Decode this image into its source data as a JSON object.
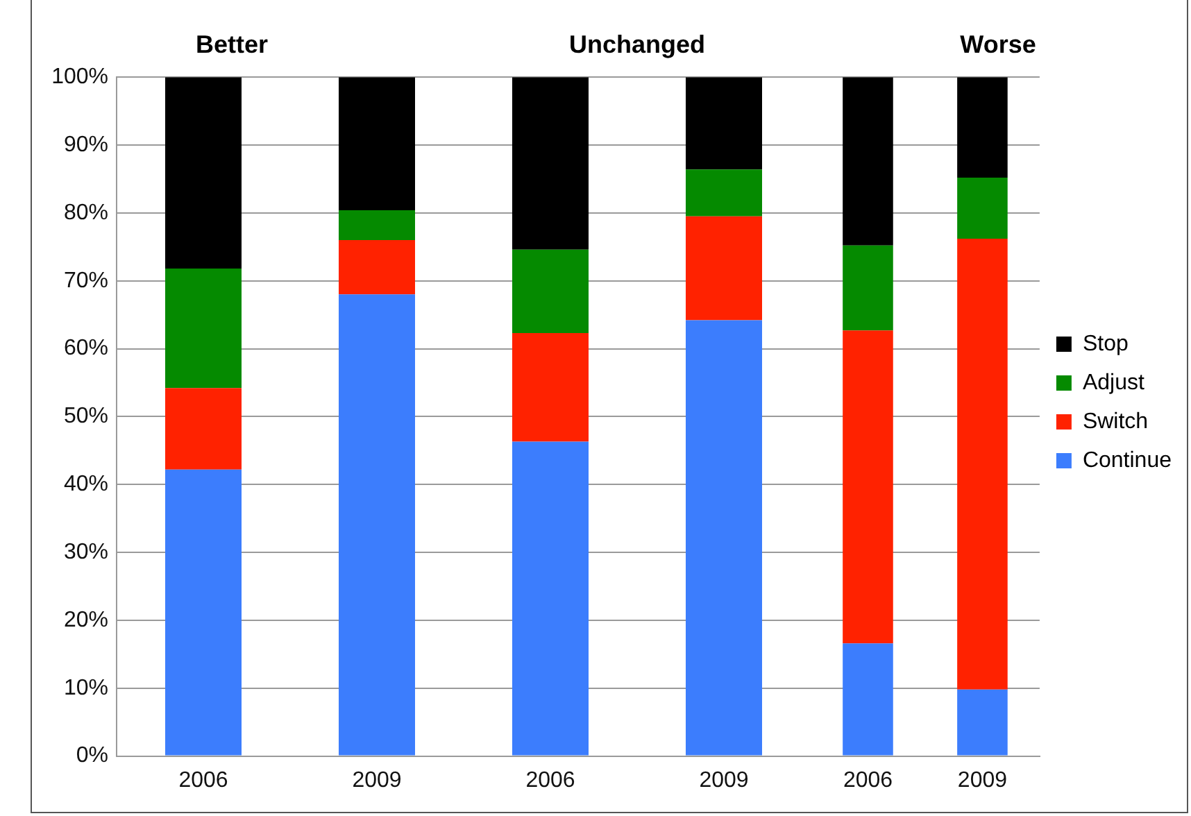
{
  "chart_data": [
    {
      "type": "bar",
      "title": "Better",
      "categories": [
        "2006",
        "2009"
      ],
      "stacked": true,
      "grid": "y",
      "ylim": [
        0,
        100
      ],
      "yticks": [
        {
          "value": 0,
          "label": "0%"
        },
        {
          "value": 10,
          "label": "10%"
        },
        {
          "value": 20,
          "label": "20%"
        },
        {
          "value": 30,
          "label": "30%"
        },
        {
          "value": 40,
          "label": "40%"
        },
        {
          "value": 50,
          "label": "50%"
        },
        {
          "value": 60,
          "label": "60%"
        },
        {
          "value": 70,
          "label": "70%"
        },
        {
          "value": 80,
          "label": "80%"
        },
        {
          "value": 90,
          "label": "90%"
        },
        {
          "value": 100,
          "label": "100%"
        }
      ],
      "series": [
        {
          "color": "#3c7dfd",
          "values": [
            42.2,
            68
          ]
        },
        {
          "color": "#ff2200",
          "values": [
            12,
            8
          ]
        },
        {
          "color": "#058a00",
          "values": [
            17.6,
            4.4
          ]
        },
        {
          "color": "#000000",
          "values": [
            28.2,
            19.6
          ]
        }
      ]
    },
    {
      "type": "bar",
      "title": "Unchanged",
      "categories": [
        "2006",
        "2009"
      ],
      "stacked": true,
      "grid": "y",
      "ylim": [
        0,
        100
      ],
      "tick_labels": "x",
      "yticks": [
        0,
        10,
        20,
        30,
        40,
        50,
        60,
        70,
        80,
        90,
        100
      ],
      "series": [
        {
          "color": "#3c7dfd",
          "values": [
            46.3,
            64.2
          ]
        },
        {
          "color": "#ff2200",
          "values": [
            16,
            15.3
          ]
        },
        {
          "color": "#058a00",
          "values": [
            12.3,
            6.9
          ]
        },
        {
          "color": "#000000",
          "values": [
            25.4,
            13.6
          ]
        }
      ]
    },
    {
      "type": "bar",
      "title": "Worse",
      "categories": [
        "2006",
        "2009"
      ],
      "stacked": true,
      "grid": "y",
      "ylim": [
        0,
        100
      ],
      "tick_labels": "x",
      "legend": "right",
      "yticks": [
        0,
        10,
        20,
        30,
        40,
        50,
        60,
        70,
        80,
        90,
        100
      ],
      "series": [
        {
          "name": "Continue",
          "color": "#3c7dfd",
          "values": [
            16.6,
            9.8
          ]
        },
        {
          "name": "Switch",
          "color": "#ff2200",
          "values": [
            46.1,
            66.4
          ]
        },
        {
          "name": "Adjust",
          "color": "#058a00",
          "values": [
            12.5,
            9
          ]
        },
        {
          "name": "Stop",
          "color": "#000000",
          "values": [
            24.8,
            14.8
          ]
        }
      ]
    }
  ]
}
